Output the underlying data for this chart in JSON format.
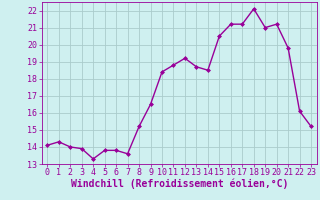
{
  "x": [
    0,
    1,
    2,
    3,
    4,
    5,
    6,
    7,
    8,
    9,
    10,
    11,
    12,
    13,
    14,
    15,
    16,
    17,
    18,
    19,
    20,
    21,
    22,
    23
  ],
  "y": [
    14.1,
    14.3,
    14.0,
    13.9,
    13.3,
    13.8,
    13.8,
    13.6,
    15.2,
    16.5,
    18.4,
    18.8,
    19.2,
    18.7,
    18.5,
    20.5,
    21.2,
    21.2,
    22.1,
    21.0,
    21.2,
    19.8,
    16.1,
    15.2
  ],
  "line_color": "#990099",
  "marker": "D",
  "marker_size": 2,
  "bg_color": "#cff0f0",
  "grid_color": "#aacccc",
  "xlabel": "Windchill (Refroidissement éolien,°C)",
  "ylim": [
    13,
    22.5
  ],
  "xlim": [
    -0.5,
    23.5
  ],
  "yticks": [
    13,
    14,
    15,
    16,
    17,
    18,
    19,
    20,
    21,
    22
  ],
  "xticks": [
    0,
    1,
    2,
    3,
    4,
    5,
    6,
    7,
    8,
    9,
    10,
    11,
    12,
    13,
    14,
    15,
    16,
    17,
    18,
    19,
    20,
    21,
    22,
    23
  ],
  "xlabel_fontsize": 7,
  "tick_fontsize": 6,
  "line_width": 1.0
}
